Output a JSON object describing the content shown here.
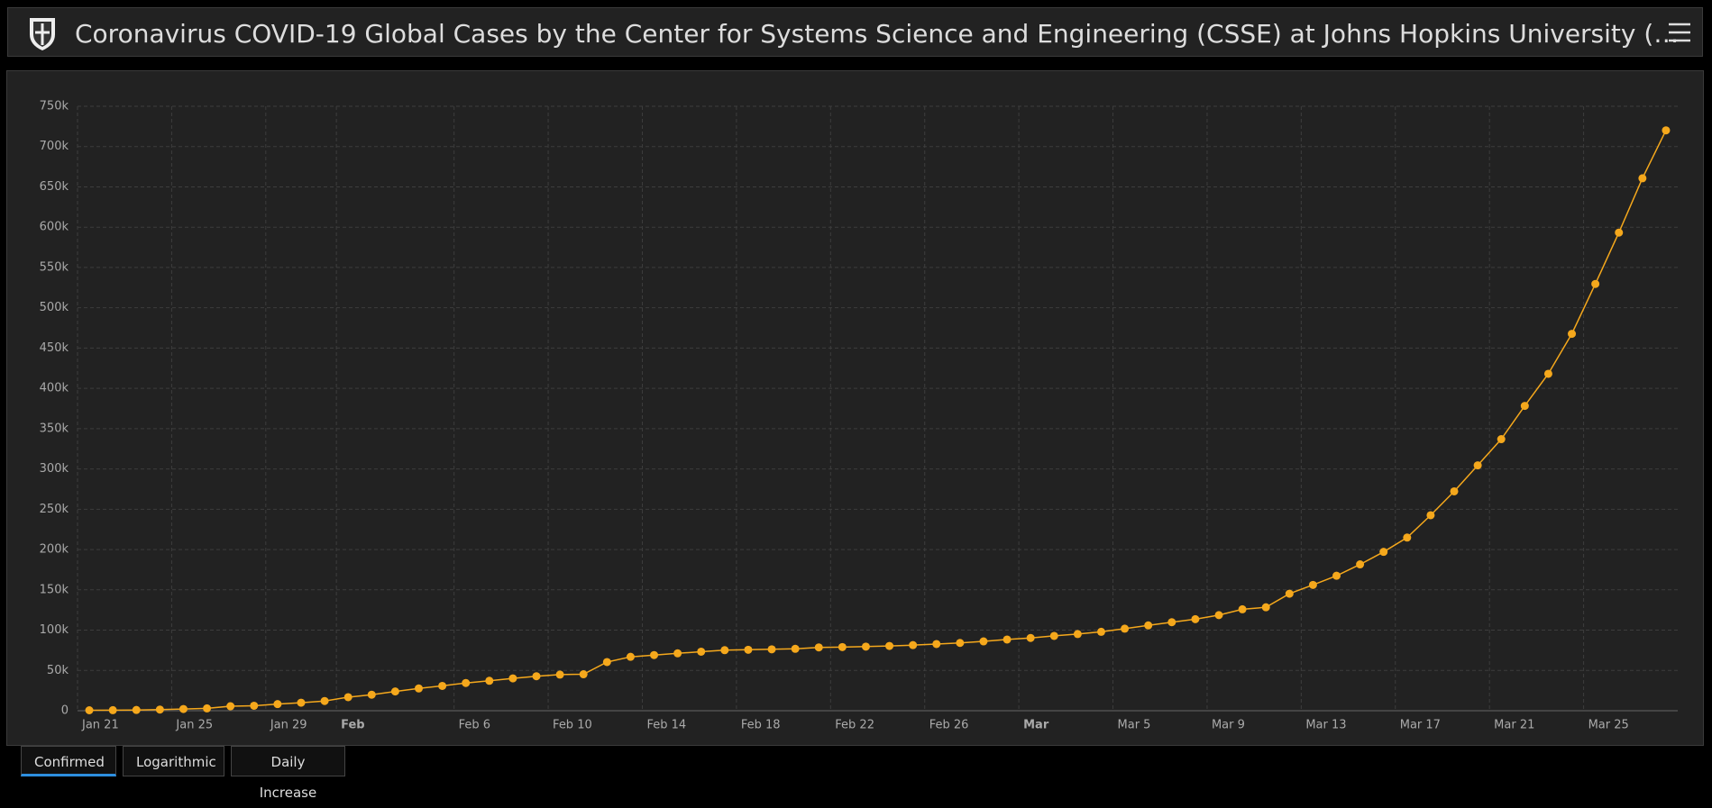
{
  "header": {
    "title": "Coronavirus COVID-19 Global Cases by the Center for Systems Science and Engineering (CSSE) at Johns Hopkins University (…"
  },
  "chart_data": {
    "type": "line",
    "color": "#f5a81c",
    "grid": true,
    "x": [
      "Jan 21",
      "Jan 22",
      "Jan 23",
      "Jan 24",
      "Jan 25",
      "Jan 26",
      "Jan 27",
      "Jan 28",
      "Jan 29",
      "Jan 30",
      "Jan 31",
      "Feb 1",
      "Feb 2",
      "Feb 3",
      "Feb 4",
      "Feb 5",
      "Feb 6",
      "Feb 7",
      "Feb 8",
      "Feb 9",
      "Feb 10",
      "Feb 11",
      "Feb 12",
      "Feb 13",
      "Feb 14",
      "Feb 15",
      "Feb 16",
      "Feb 17",
      "Feb 18",
      "Feb 19",
      "Feb 20",
      "Feb 21",
      "Feb 22",
      "Feb 23",
      "Feb 24",
      "Feb 25",
      "Feb 26",
      "Feb 27",
      "Feb 28",
      "Feb 29",
      "Mar 1",
      "Mar 2",
      "Mar 3",
      "Mar 4",
      "Mar 5",
      "Mar 6",
      "Mar 7",
      "Mar 8",
      "Mar 9",
      "Mar 10",
      "Mar 11",
      "Mar 12",
      "Mar 13",
      "Mar 14",
      "Mar 15",
      "Mar 16",
      "Mar 17",
      "Mar 18",
      "Mar 19",
      "Mar 20",
      "Mar 21",
      "Mar 22",
      "Mar 23",
      "Mar 24",
      "Mar 25",
      "Mar 26",
      "Mar 27",
      "Mar 28"
    ],
    "values": [
      555,
      654,
      941,
      1434,
      2118,
      2927,
      5578,
      6166,
      8234,
      9927,
      12038,
      16787,
      19881,
      23892,
      27635,
      30794,
      34391,
      37120,
      40150,
      42762,
      44802,
      45221,
      60368,
      66885,
      69030,
      71224,
      73258,
      75136,
      75639,
      76197,
      76819,
      78572,
      78958,
      79561,
      80406,
      81388,
      82746,
      84112,
      86011,
      88369,
      90306,
      92840,
      95120,
      97886,
      101801,
      105847,
      109821,
      113590,
      118620,
      125875,
      128352,
      145205,
      156101,
      167454,
      181574,
      197102,
      214821,
      242570,
      272208,
      304507,
      336953,
      378235,
      418045,
      467653,
      529591,
      593291,
      660693,
      720117
    ],
    "xticks": [
      "Jan 21",
      "Jan 25",
      "Jan 29",
      {
        "value": "Feb 1",
        "label": "Feb"
      },
      "Feb 6",
      "Feb 10",
      "Feb 14",
      "Feb 18",
      "Feb 22",
      "Feb 26",
      {
        "value": "Mar 1",
        "label": "Mar"
      },
      "Mar 5",
      "Mar 9",
      "Mar 13",
      "Mar 17",
      "Mar 21",
      "Mar 25"
    ],
    "ylim": [
      0,
      750000
    ],
    "yticks": [
      0,
      {
        "value": 50000,
        "label": "50k"
      },
      {
        "value": 100000,
        "label": "100k"
      },
      {
        "value": 150000,
        "label": "150k"
      },
      {
        "value": 200000,
        "label": "200k"
      },
      {
        "value": 250000,
        "label": "250k"
      },
      {
        "value": 300000,
        "label": "300k"
      },
      {
        "value": 350000,
        "label": "350k"
      },
      {
        "value": 400000,
        "label": "400k"
      },
      {
        "value": 450000,
        "label": "450k"
      },
      {
        "value": 500000,
        "label": "500k"
      },
      {
        "value": 550000,
        "label": "550k"
      },
      {
        "value": 600000,
        "label": "600k"
      },
      {
        "value": 650000,
        "label": "650k"
      },
      {
        "value": 700000,
        "label": "700k"
      },
      {
        "value": 750000,
        "label": "750k"
      }
    ]
  },
  "tabs": [
    "Confirmed",
    "Logarithmic",
    "Daily Increase"
  ]
}
